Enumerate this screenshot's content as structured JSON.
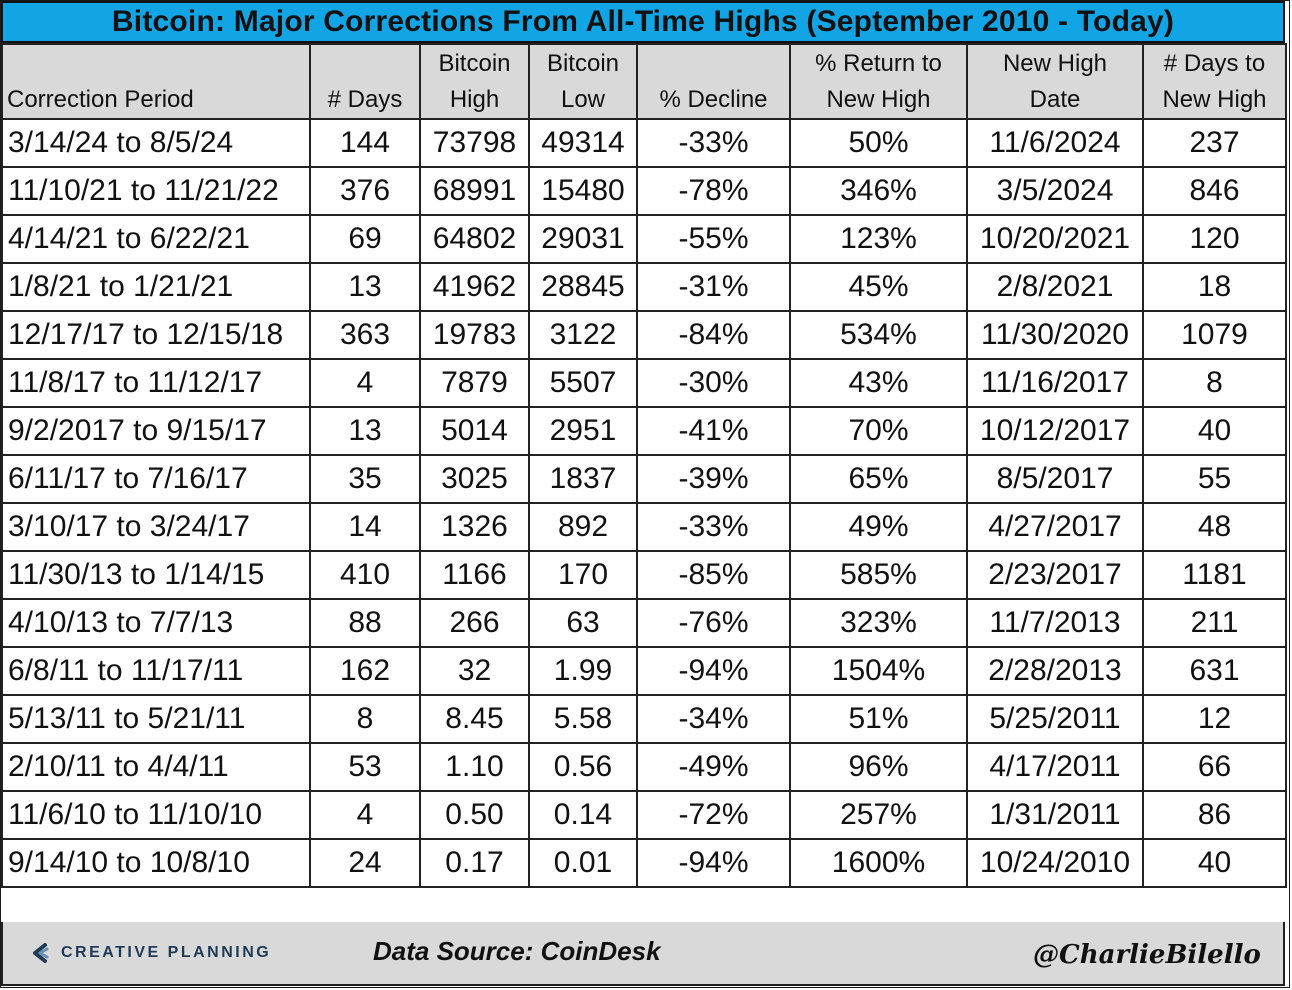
{
  "title": "Bitcoin: Major Corrections From All-Time Highs (September 2010 - Today)",
  "headers": [
    {
      "line1": "",
      "line2": "Correction Period"
    },
    {
      "line1": "",
      "line2": "# Days"
    },
    {
      "line1": "Bitcoin",
      "line2": "High"
    },
    {
      "line1": "Bitcoin",
      "line2": "Low"
    },
    {
      "line1": "",
      "line2": "% Decline"
    },
    {
      "line1": "% Return to",
      "line2": "New High"
    },
    {
      "line1": "New High",
      "line2": "Date"
    },
    {
      "line1": "# Days to",
      "line2": "New High"
    }
  ],
  "rows": [
    [
      "3/14/24 to 8/5/24",
      "144",
      "73798",
      "49314",
      "-33%",
      "50%",
      "11/6/2024",
      "237"
    ],
    [
      "11/10/21 to 11/21/22",
      "376",
      "68991",
      "15480",
      "-78%",
      "346%",
      "3/5/2024",
      "846"
    ],
    [
      "4/14/21 to 6/22/21",
      "69",
      "64802",
      "29031",
      "-55%",
      "123%",
      "10/20/2021",
      "120"
    ],
    [
      "1/8/21 to 1/21/21",
      "13",
      "41962",
      "28845",
      "-31%",
      "45%",
      "2/8/2021",
      "18"
    ],
    [
      "12/17/17 to 12/15/18",
      "363",
      "19783",
      "3122",
      "-84%",
      "534%",
      "11/30/2020",
      "1079"
    ],
    [
      "11/8/17 to 11/12/17",
      "4",
      "7879",
      "5507",
      "-30%",
      "43%",
      "11/16/2017",
      "8"
    ],
    [
      "9/2/2017 to 9/15/17",
      "13",
      "5014",
      "2951",
      "-41%",
      "70%",
      "10/12/2017",
      "40"
    ],
    [
      "6/11/17 to 7/16/17",
      "35",
      "3025",
      "1837",
      "-39%",
      "65%",
      "8/5/2017",
      "55"
    ],
    [
      "3/10/17 to 3/24/17",
      "14",
      "1326",
      "892",
      "-33%",
      "49%",
      "4/27/2017",
      "48"
    ],
    [
      "11/30/13 to 1/14/15",
      "410",
      "1166",
      "170",
      "-85%",
      "585%",
      "2/23/2017",
      "1181"
    ],
    [
      "4/10/13 to 7/7/13",
      "88",
      "266",
      "63",
      "-76%",
      "323%",
      "11/7/2013",
      "211"
    ],
    [
      "6/8/11 to 11/17/11",
      "162",
      "32",
      "1.99",
      "-94%",
      "1504%",
      "2/28/2013",
      "631"
    ],
    [
      "5/13/11 to 5/21/11",
      "8",
      "8.45",
      "5.58",
      "-34%",
      "51%",
      "5/25/2011",
      "12"
    ],
    [
      "2/10/11 to 4/4/11",
      "53",
      "1.10",
      "0.56",
      "-49%",
      "96%",
      "4/17/2011",
      "66"
    ],
    [
      "11/6/10 to 11/10/10",
      "4",
      "0.50",
      "0.14",
      "-72%",
      "257%",
      "1/31/2011",
      "86"
    ],
    [
      "9/14/10 to 10/8/10",
      "24",
      "0.17",
      "0.01",
      "-94%",
      "1600%",
      "10/24/2010",
      "40"
    ]
  ],
  "footer": {
    "logo_text": "CREATIVE PLANNING",
    "source": "Data Source: CoinDesk",
    "handle": "@CharlieBilello"
  },
  "colors": {
    "title_bg": "#12a5e6",
    "header_bg": "#d9d9d9",
    "footer_bg": "#d9d9d9"
  }
}
